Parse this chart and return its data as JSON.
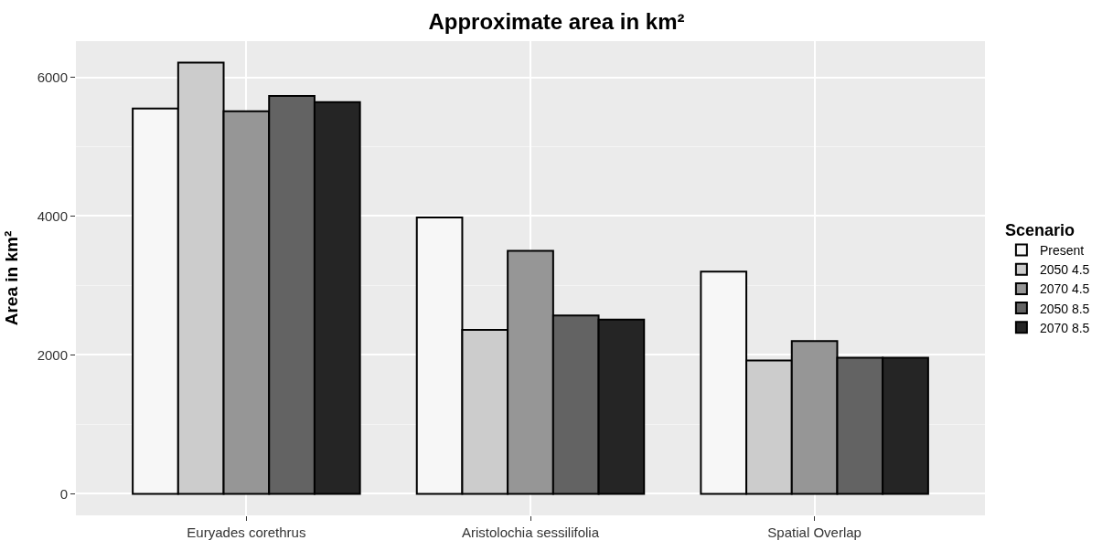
{
  "chart_data": {
    "type": "bar",
    "title": "Approximate area in km²",
    "ylabel": "Area in km²",
    "legend_title": "Scenario",
    "categories": [
      "Euryades corethrus",
      "Aristolochia sessilifolia",
      "Spatial Overlap"
    ],
    "series": [
      {
        "name": "Present",
        "color": "#f7f7f7",
        "values": [
          5550,
          3980,
          3200
        ]
      },
      {
        "name": "2050 4.5",
        "color": "#cccccc",
        "values": [
          6210,
          2360,
          1920
        ]
      },
      {
        "name": "2070 4.5",
        "color": "#969696",
        "values": [
          5510,
          3500,
          2200
        ]
      },
      {
        "name": "2050 8.5",
        "color": "#636363",
        "values": [
          5730,
          2570,
          1960
        ]
      },
      {
        "name": "2070 8.5",
        "color": "#252525",
        "values": [
          5640,
          2510,
          1960
        ]
      }
    ],
    "ylim": [
      -310,
      6520
    ],
    "yticks": [
      0,
      2000,
      4000,
      6000
    ],
    "grid": true,
    "legend": "right"
  }
}
